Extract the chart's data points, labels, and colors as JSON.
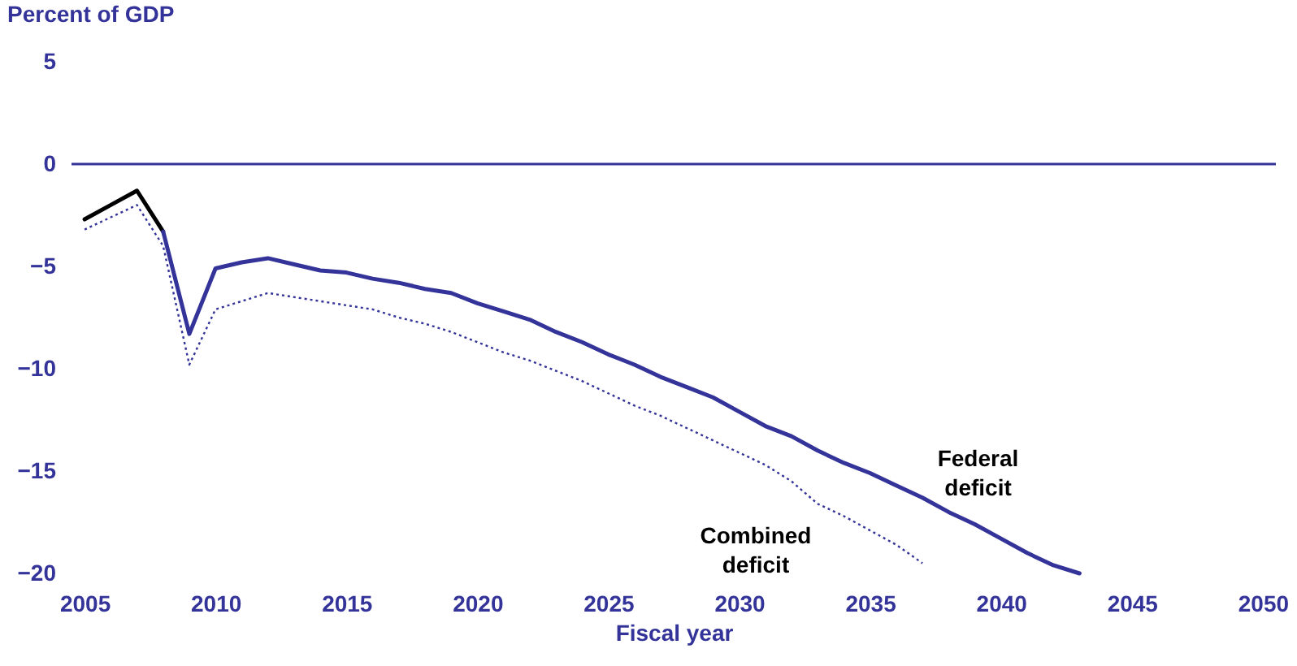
{
  "chart_data": {
    "type": "line",
    "xlabel": "Fiscal year",
    "ylabel": "Percent of GDP",
    "xlim": [
      2004.5,
      2050.5
    ],
    "xticks": [
      2005,
      2010,
      2015,
      2020,
      2025,
      2030,
      2035,
      2040,
      2045,
      2050
    ],
    "ylim": [
      -20,
      5
    ],
    "yticks": [
      5,
      0,
      -5,
      -10,
      -15,
      -20
    ],
    "grid": false,
    "marker": "none",
    "ref_lines": [
      {
        "axis": "y",
        "value": 0,
        "color": "#333399",
        "line_style": "solid"
      }
    ],
    "series": [
      {
        "color": "#000000",
        "line_style": "solid",
        "x": [
          2005,
          2006,
          2007,
          2008
        ],
        "values": [
          -2.7,
          -2.0,
          -1.3,
          -3.3
        ]
      },
      {
        "name": "Federal deficit",
        "color": "#333399",
        "line_style": "solid",
        "x": [
          2008,
          2009,
          2010,
          2011,
          2012,
          2013,
          2014,
          2015,
          2016,
          2017,
          2018,
          2019,
          2020,
          2021,
          2022,
          2023,
          2024,
          2025,
          2026,
          2027,
          2028,
          2029,
          2030,
          2031,
          2032,
          2033,
          2034,
          2035,
          2036,
          2037,
          2038,
          2039,
          2040,
          2041,
          2042,
          2043
        ],
        "values": [
          -3.3,
          -8.3,
          -5.1,
          -4.8,
          -4.6,
          -4.9,
          -5.2,
          -5.3,
          -5.6,
          -5.8,
          -6.1,
          -6.3,
          -6.8,
          -7.2,
          -7.6,
          -8.2,
          -8.7,
          -9.3,
          -9.8,
          -10.4,
          -10.9,
          -11.4,
          -12.1,
          -12.8,
          -13.3,
          -14.0,
          -14.6,
          -15.1,
          -15.7,
          -16.3,
          -17.0,
          -17.6,
          -18.3,
          -19.0,
          -19.6,
          -20.0
        ]
      },
      {
        "name": "Combined deficit",
        "color": "#333399",
        "line_style": "dotted",
        "x": [
          2005,
          2006,
          2007,
          2008,
          2009,
          2010,
          2011,
          2012,
          2013,
          2014,
          2015,
          2016,
          2017,
          2018,
          2019,
          2020,
          2021,
          2022,
          2023,
          2024,
          2025,
          2026,
          2027,
          2028,
          2029,
          2030,
          2031,
          2032,
          2033,
          2034,
          2035,
          2036,
          2037
        ],
        "values": [
          -3.2,
          -2.6,
          -2.0,
          -4.0,
          -9.8,
          -7.1,
          -6.7,
          -6.3,
          -6.5,
          -6.7,
          -6.9,
          -7.1,
          -7.5,
          -7.8,
          -8.2,
          -8.7,
          -9.2,
          -9.6,
          -10.1,
          -10.6,
          -11.2,
          -11.8,
          -12.3,
          -12.9,
          -13.5,
          -14.1,
          -14.7,
          -15.5,
          -16.6,
          -17.2,
          -17.9,
          -18.6,
          -19.5
        ]
      }
    ]
  }
}
